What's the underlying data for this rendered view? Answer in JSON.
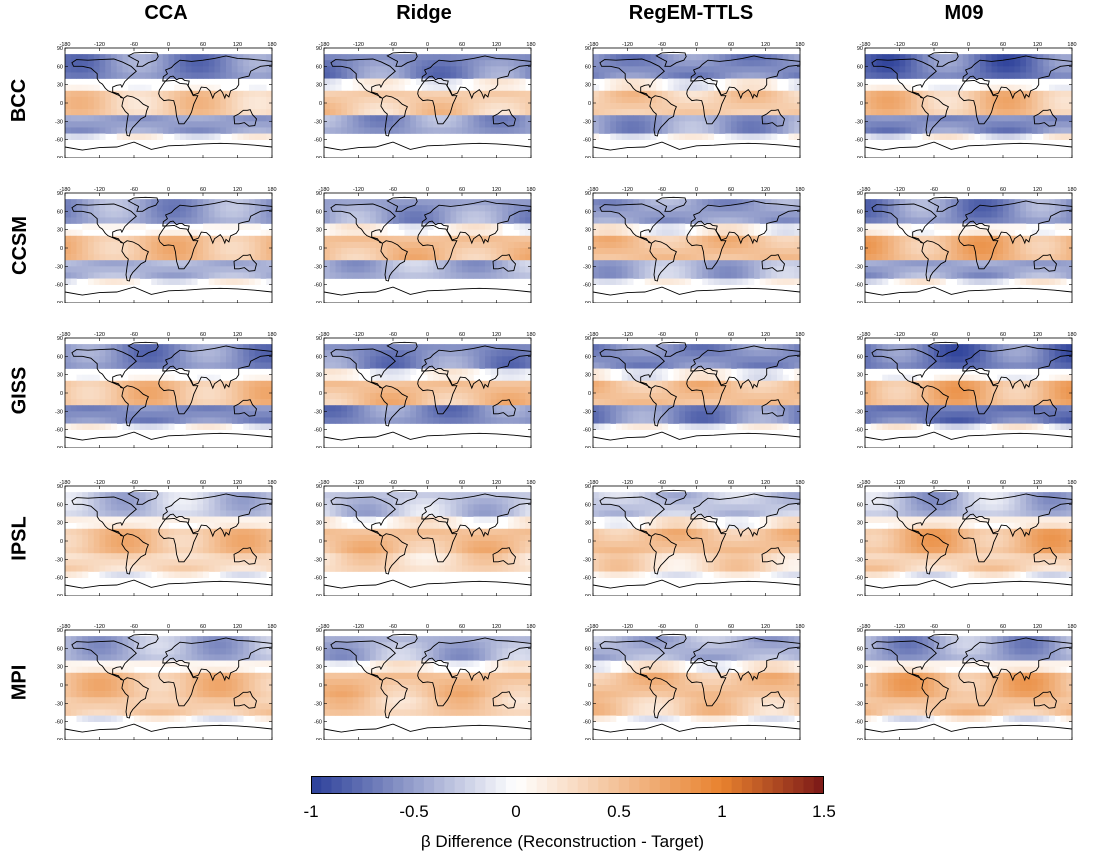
{
  "figure": {
    "columns": [
      "CCA",
      "Ridge",
      "RegEM-TTLS",
      "M09"
    ],
    "rows": [
      "BCC",
      "CCSM",
      "GISS",
      "IPSL",
      "MPI"
    ]
  },
  "colorbar": {
    "ticks": [
      "-1",
      "-0.5",
      "0",
      "0.5",
      "1",
      "1.5"
    ],
    "label": "β Difference (Reconstruction - Target)",
    "colors": {
      "neg_end": "#2b3f99",
      "zero": "#ffffff",
      "pos_mid": "#e8822e",
      "pos_end": "#7a1717"
    }
  },
  "chart_data": {
    "type": "heatmap",
    "value_range": [
      -1,
      1.5
    ],
    "map_axes": {
      "x_ticks": [
        "-180",
        "-120",
        "-60",
        "0",
        "60",
        "120",
        "180"
      ],
      "y_ticks": [
        "90",
        "60",
        "30",
        "0",
        "-30",
        "-60",
        "-90"
      ]
    },
    "panel_grid": {
      "rows": [
        "BCC",
        "CCSM",
        "GISS",
        "IPSL",
        "MPI"
      ],
      "columns": [
        "CCA",
        "Ridge",
        "RegEM-TTLS",
        "M09"
      ]
    },
    "panel_summaries_approx": [
      {
        "row": "BCC",
        "north_band": -0.6,
        "tropics": 0.4,
        "south_band": -0.5
      },
      {
        "row": "CCSM",
        "north_band": -0.5,
        "tropics": 0.5,
        "south_band": -0.4
      },
      {
        "row": "GISS",
        "north_band": -0.6,
        "tropics": 0.5,
        "south_band": -0.6
      },
      {
        "row": "IPSL",
        "north_band": -0.3,
        "tropics": 0.5,
        "south_band": 0.3
      },
      {
        "row": "MPI",
        "north_band": -0.4,
        "tropics": 0.5,
        "south_band": 0.4
      }
    ]
  }
}
